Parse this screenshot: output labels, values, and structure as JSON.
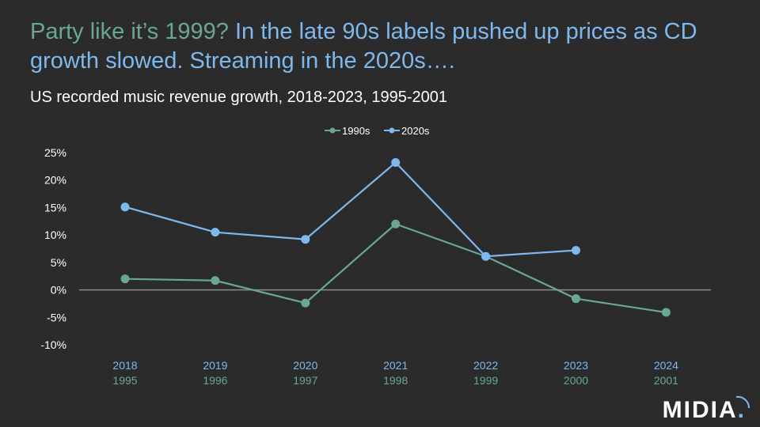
{
  "headline": {
    "lead": "Party like it’s 1999?",
    "rest": "In the late 90s labels pushed up prices as CD growth slowed. Streaming in the 2020s…."
  },
  "brand": {
    "logo": "MIDIA",
    "dot": "."
  },
  "colors": {
    "series_1990s": "#6aa697",
    "series_2020s": "#7fb8ee",
    "axis_text": "#ffffff",
    "zero_line": "#8a8a8a"
  },
  "chart_data": {
    "type": "line",
    "title": "US recorded music revenue growth, 2018-2023, 1995-2001",
    "categories": [
      "2018",
      "2019",
      "2020",
      "2021",
      "2022",
      "2023",
      "2024"
    ],
    "secondary_categories": [
      "1995",
      "1996",
      "1997",
      "1998",
      "1999",
      "2000",
      "2001"
    ],
    "series": [
      {
        "name": "1990s",
        "values": [
          2.0,
          1.7,
          -2.4,
          12.0,
          6.1,
          -1.6,
          -4.1
        ]
      },
      {
        "name": "2020s",
        "values": [
          15.1,
          10.5,
          9.2,
          23.2,
          6.1,
          7.2,
          null
        ]
      }
    ],
    "y_ticks": [
      25,
      20,
      15,
      10,
      5,
      0,
      -5,
      -10
    ],
    "y_tick_labels": [
      "25%",
      "20%",
      "15%",
      "10%",
      "5%",
      "0%",
      "-5%",
      "-10%"
    ],
    "ylim": [
      -10,
      25
    ],
    "legend_position": "top-center",
    "grid": false
  }
}
